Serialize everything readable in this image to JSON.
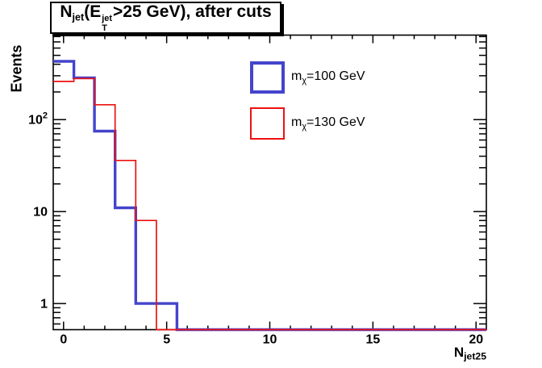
{
  "canvas": {
    "background": "#ffffff"
  },
  "title": {
    "pre": "N",
    "sub1": "jet",
    "mid": "(E",
    "sup_stack": "jet",
    "sub_stack": "T",
    "rest": ">25 GeV), after cuts"
  },
  "axes": {
    "y_title": "Events",
    "x_title_pre": "N",
    "x_title_sub": "jet25"
  },
  "legend": {
    "items": [
      {
        "pre": "m",
        "sub": "χ",
        "rest": "=100 GeV",
        "color": "#4444cc",
        "border_width": 4
      },
      {
        "pre": "m",
        "sub": "χ",
        "rest": "=130 GeV",
        "color": "#ee1111",
        "border_width": 2
      }
    ]
  },
  "chart_data": {
    "type": "line",
    "style": "histogram-step",
    "title": "N_jet(E_T^jet>25 GeV), after cuts",
    "xlabel": "N_jet25",
    "ylabel": "Events",
    "yscale": "log",
    "grid": false,
    "legend_position": "upper-center",
    "xlim": [
      -0.5,
      20.5
    ],
    "ylim": [
      0.52,
      830
    ],
    "bin_edges": [
      -0.5,
      0.5,
      1.5,
      2.5,
      3.5,
      4.5,
      5.5,
      6.5,
      7.5,
      8.5,
      9.5,
      10.5,
      11.5,
      12.5,
      13.5,
      14.5,
      15.5,
      16.5,
      17.5,
      18.5,
      19.5,
      20.5
    ],
    "x_major_ticks": [
      0,
      5,
      10,
      15,
      20
    ],
    "x_minor_step": 1,
    "y_major_ticks": [
      {
        "value": 1,
        "label": "1",
        "sup": ""
      },
      {
        "value": 10,
        "label": "10",
        "sup": ""
      },
      {
        "value": 100,
        "label": "10",
        "sup": "2"
      }
    ],
    "series": [
      {
        "name": "m_chi=100 GeV",
        "color": "#4444cc",
        "line_width": 3.4,
        "values": [
          430,
          285,
          75,
          11,
          1,
          1,
          0,
          0,
          0,
          0,
          0,
          0,
          0,
          0,
          0,
          0,
          0,
          0,
          0,
          0,
          0
        ]
      },
      {
        "name": "m_chi=130 GeV",
        "color": "#ee1111",
        "line_width": 1.7,
        "values": [
          260,
          280,
          145,
          36,
          8,
          0,
          0,
          0,
          0,
          0,
          0,
          0,
          0,
          0,
          0,
          0,
          0,
          0,
          0,
          0,
          0
        ]
      }
    ]
  }
}
